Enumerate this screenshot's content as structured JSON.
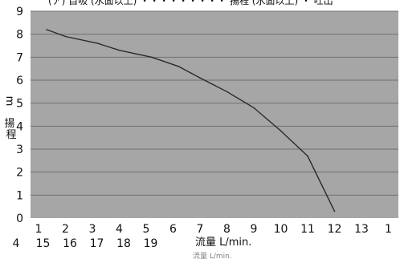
{
  "header": {
    "text": "(ア) 自吸 (水面以上) ・・・・・・・・・ 揚程 (水面以上) ・ 吐出"
  },
  "colors": {
    "plot_bg": "#a6a6a6",
    "gridline": "#6f6f6f",
    "curve": "#2a2a2a",
    "text": "#111111"
  },
  "chart_data": {
    "type": "line",
    "ylabel": "揚程 m",
    "xlabel": "流量 L/min.",
    "xlabel_echo": "流量 L/min.",
    "y_ticks": [
      "0",
      "1",
      "2",
      "3",
      "4",
      "5",
      "6",
      "7",
      "8",
      "9"
    ],
    "x_ticks_row1": [
      "1",
      "2",
      "3",
      "4",
      "5",
      "6",
      "7",
      "8",
      "9",
      "10",
      "11",
      "12",
      "13",
      "1"
    ],
    "x_ticks_row2": [
      "4",
      "15",
      "16",
      "17",
      "18",
      "19"
    ],
    "ylim": [
      0,
      9
    ],
    "xlim": [
      1,
      14
    ],
    "grid": true,
    "series": [
      {
        "x": [
          1.3,
          2.0,
          3.2,
          4.0,
          5.2,
          6.2,
          7.0,
          8.0,
          9.0,
          10.0,
          11.0,
          12.0
        ],
        "values": [
          8.2,
          7.9,
          7.6,
          7.3,
          7.0,
          6.6,
          6.1,
          5.5,
          4.8,
          3.8,
          2.7,
          0.3
        ]
      }
    ]
  }
}
